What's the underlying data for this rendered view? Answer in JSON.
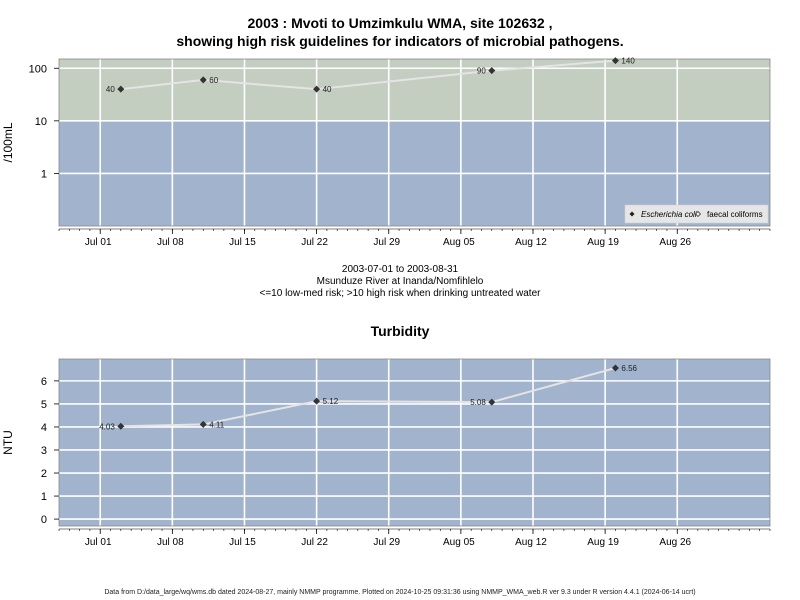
{
  "title_line1": "2003 : Mvoti to Umzimkulu WMA, site 102632 ,",
  "title_line2": "showing high risk guidelines for indicators of microbial pathogens.",
  "subtitle_dates": "2003-07-01 to 2003-08-31",
  "subtitle_site": "Msunduze River at Inanda/Nomfihlelo",
  "subtitle_risk": "<=10 low-med risk; >10 high risk when drinking untreated water",
  "footer": "Data from D:/data_large/wq/wms.db dated 2024-08-27, mainly NMMP programme. Plotted on 2024-10-25 09:31:36 using NMMP_WMA_web.R ver 9.3 under R version 4.4.1 (2024-06-14 ucrt)",
  "colors": {
    "high_risk_band": "#c3cdc0",
    "low_risk_band": "#a1b3cd",
    "plot_bg": "#a1b3cd",
    "grid": "#ffffff",
    "line": "#e4e4e4",
    "point": "#333333"
  },
  "chart_data": [
    {
      "id": "microbial",
      "type": "line",
      "title": "",
      "xlabel": "",
      "ylabel": "/100mL",
      "y_scale": "log",
      "ylim": [
        0.1,
        150
      ],
      "xlim": [
        "2003-06-27",
        "2003-09-04"
      ],
      "x_ticks": [
        {
          "date": "2003-07-01",
          "label": "Jul 01"
        },
        {
          "date": "2003-07-08",
          "label": "Jul 08"
        },
        {
          "date": "2003-07-15",
          "label": "Jul 15"
        },
        {
          "date": "2003-07-22",
          "label": "Jul 22"
        },
        {
          "date": "2003-07-29",
          "label": "Jul 29"
        },
        {
          "date": "2003-08-05",
          "label": "Aug 05"
        },
        {
          "date": "2003-08-12",
          "label": "Aug 12"
        },
        {
          "date": "2003-08-19",
          "label": "Aug 19"
        },
        {
          "date": "2003-08-26",
          "label": "Aug 26"
        }
      ],
      "y_ticks": [
        {
          "value": 1,
          "label": "1"
        },
        {
          "value": 10,
          "label": "10"
        },
        {
          "value": 100,
          "label": "100"
        }
      ],
      "risk_threshold": 10,
      "legend_position": "bottom-right",
      "legend": [
        {
          "label": "Escherichia coli",
          "marker": "filled-diamond",
          "italic": true
        },
        {
          "label": "faecal coliforms",
          "marker": "open-diamond",
          "italic": false
        }
      ],
      "series": [
        {
          "name": "Escherichia coli",
          "points": [
            {
              "x": "2003-07-03",
              "y": 40,
              "label": "40",
              "label_side": "left"
            },
            {
              "x": "2003-07-11",
              "y": 60,
              "label": "60",
              "label_side": "right"
            },
            {
              "x": "2003-07-22",
              "y": 40,
              "label": "40",
              "label_side": "right"
            },
            {
              "x": "2003-08-08",
              "y": 90,
              "label": "90",
              "label_side": "left"
            },
            {
              "x": "2003-08-20",
              "y": 140,
              "label": "140",
              "label_side": "right"
            }
          ]
        }
      ]
    },
    {
      "id": "turbidity",
      "type": "line",
      "title": "Turbidity",
      "xlabel": "",
      "ylabel": "NTU",
      "y_scale": "linear",
      "ylim": [
        -0.3,
        6.95
      ],
      "xlim": [
        "2003-06-27",
        "2003-09-04"
      ],
      "x_ticks": [
        {
          "date": "2003-07-01",
          "label": "Jul 01"
        },
        {
          "date": "2003-07-08",
          "label": "Jul 08"
        },
        {
          "date": "2003-07-15",
          "label": "Jul 15"
        },
        {
          "date": "2003-07-22",
          "label": "Jul 22"
        },
        {
          "date": "2003-07-29",
          "label": "Jul 29"
        },
        {
          "date": "2003-08-05",
          "label": "Aug 05"
        },
        {
          "date": "2003-08-12",
          "label": "Aug 12"
        },
        {
          "date": "2003-08-19",
          "label": "Aug 19"
        },
        {
          "date": "2003-08-26",
          "label": "Aug 26"
        }
      ],
      "y_ticks": [
        {
          "value": 0,
          "label": "0"
        },
        {
          "value": 1,
          "label": "1"
        },
        {
          "value": 2,
          "label": "2"
        },
        {
          "value": 3,
          "label": "3"
        },
        {
          "value": 4,
          "label": "4"
        },
        {
          "value": 5,
          "label": "5"
        },
        {
          "value": 6,
          "label": "6"
        }
      ],
      "series": [
        {
          "name": "",
          "points": [
            {
              "x": "2003-07-03",
              "y": 4.03,
              "label": "4.03",
              "label_side": "left"
            },
            {
              "x": "2003-07-11",
              "y": 4.11,
              "label": "4.11",
              "label_side": "right"
            },
            {
              "x": "2003-07-22",
              "y": 5.12,
              "label": "5.12",
              "label_side": "right"
            },
            {
              "x": "2003-08-08",
              "y": 5.08,
              "label": "5.08",
              "label_side": "left"
            },
            {
              "x": "2003-08-20",
              "y": 6.56,
              "label": "6.56",
              "label_side": "right"
            }
          ]
        }
      ]
    }
  ]
}
